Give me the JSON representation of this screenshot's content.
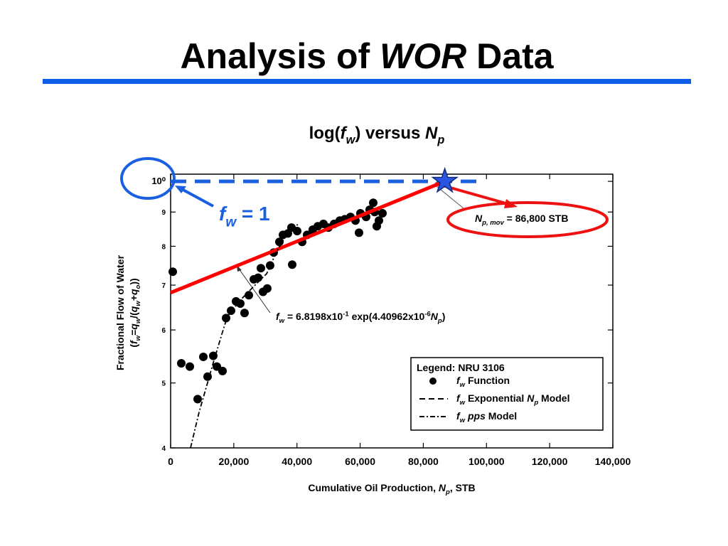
{
  "slide": {
    "title": [
      "Analysis of ",
      "WOR",
      " Data"
    ],
    "rule_color": "#0a5ee8"
  },
  "chart_data": {
    "type": "scatter",
    "title": [
      "log(",
      "f",
      "w",
      ") versus ",
      "N",
      "p"
    ],
    "x_label": [
      "Cumulative Oil Production, ",
      "N",
      "p",
      ", STB"
    ],
    "y_label": [
      "Fractional Flow of Water"
    ],
    "y_label_2": [
      "(",
      "f",
      "w",
      "=",
      "q",
      "w",
      "/(",
      "q",
      "w",
      "+",
      "q",
      "o",
      "))"
    ],
    "xlim": [
      0,
      140000
    ],
    "xticks": [
      0,
      {
        "value": 20000,
        "label": "20,000"
      },
      {
        "value": 40000,
        "label": "40,000"
      },
      {
        "value": 60000,
        "label": "60,000"
      },
      {
        "value": 80000,
        "label": "80,000"
      },
      {
        "value": 100000,
        "label": "100,000"
      },
      {
        "value": 120000,
        "label": "120,000"
      },
      {
        "value": 140000,
        "label": "140,000"
      }
    ],
    "ylim": [
      0.4,
      1.025
    ],
    "log_y": true,
    "yticks": [
      {
        "value": 1,
        "label": "10⁰"
      },
      {
        "value": 0.9,
        "label": "9"
      },
      {
        "value": 0.8,
        "label": "8"
      },
      {
        "value": 0.7,
        "label": "7"
      },
      {
        "value": 0.6,
        "label": "6"
      },
      {
        "value": 0.5,
        "label": "5"
      },
      {
        "value": 0.4,
        "label": "4"
      }
    ],
    "legend_title": "Legend: NRU 3106",
    "series": [
      {
        "name": [
          "f",
          "w",
          "  Function"
        ],
        "style": "points",
        "color": "#000000",
        "x": [
          675,
          3376,
          6077,
          8553,
          10354,
          11700,
          13500,
          14630,
          16430,
          17556,
          19130,
          20700,
          22060,
          23400,
          24760,
          26330,
          27700,
          28580,
          29260,
          30600,
          31500,
          32630,
          34430,
          35560,
          37130,
          38260,
          38490,
          40060,
          41640,
          43210,
          45000,
          46590,
          48380,
          49950,
          51770,
          53560,
          55130,
          56930,
          58520,
          59640,
          60090,
          61890,
          63020,
          64600,
          65270,
          65950,
          67070,
          64150
        ],
        "values": [
          0.733,
          0.535,
          0.529,
          0.473,
          0.547,
          0.511,
          0.549,
          0.529,
          0.521,
          0.625,
          0.641,
          0.662,
          0.657,
          0.636,
          0.676,
          0.714,
          0.718,
          0.742,
          0.684,
          0.692,
          0.749,
          0.783,
          0.812,
          0.832,
          0.836,
          0.853,
          0.751,
          0.843,
          0.812,
          0.832,
          0.847,
          0.857,
          0.864,
          0.853,
          0.864,
          0.874,
          0.878,
          0.885,
          0.874,
          0.838,
          0.896,
          0.885,
          0.907,
          0.9,
          0.857,
          0.874,
          0.896,
          0.929
        ]
      },
      {
        "name": [
          "f",
          "w",
          " Exponential ",
          "N",
          "p",
          " Model"
        ],
        "style": "dashed",
        "color": "#000000",
        "highlight_color": "#ff0000",
        "x": [
          0,
          86800
        ],
        "values": [
          0.68198,
          1
        ]
      },
      {
        "name": [
          "f",
          "w",
          " ",
          "pps",
          " Model"
        ],
        "style": "dashdot",
        "color": "#000000",
        "x": [
          6300,
          9000,
          11250,
          13500,
          16200,
          18000,
          22500,
          27000,
          30400,
          33760,
          36010,
          38260,
          40510
        ],
        "values": [
          0.4,
          0.452,
          0.492,
          0.536,
          0.591,
          0.629,
          0.668,
          0.702,
          0.728,
          0.789,
          0.822,
          0.849,
          0.864
        ]
      }
    ],
    "model_label": [
      "f",
      "w",
      " = 6.8198x10",
      "-1",
      " exp(4.40962x10",
      "-6",
      "N",
      "p",
      ")"
    ],
    "fw1": {
      "value": 1,
      "x_end": 99000,
      "color": "#1a5fe0",
      "label": [
        "f",
        "w",
        " = 1"
      ]
    },
    "np_mov": {
      "x": 86800,
      "y": 1,
      "color": "#2a55e0",
      "label": [
        "N",
        "p, mov",
        " = 86,800 STB"
      ]
    }
  }
}
